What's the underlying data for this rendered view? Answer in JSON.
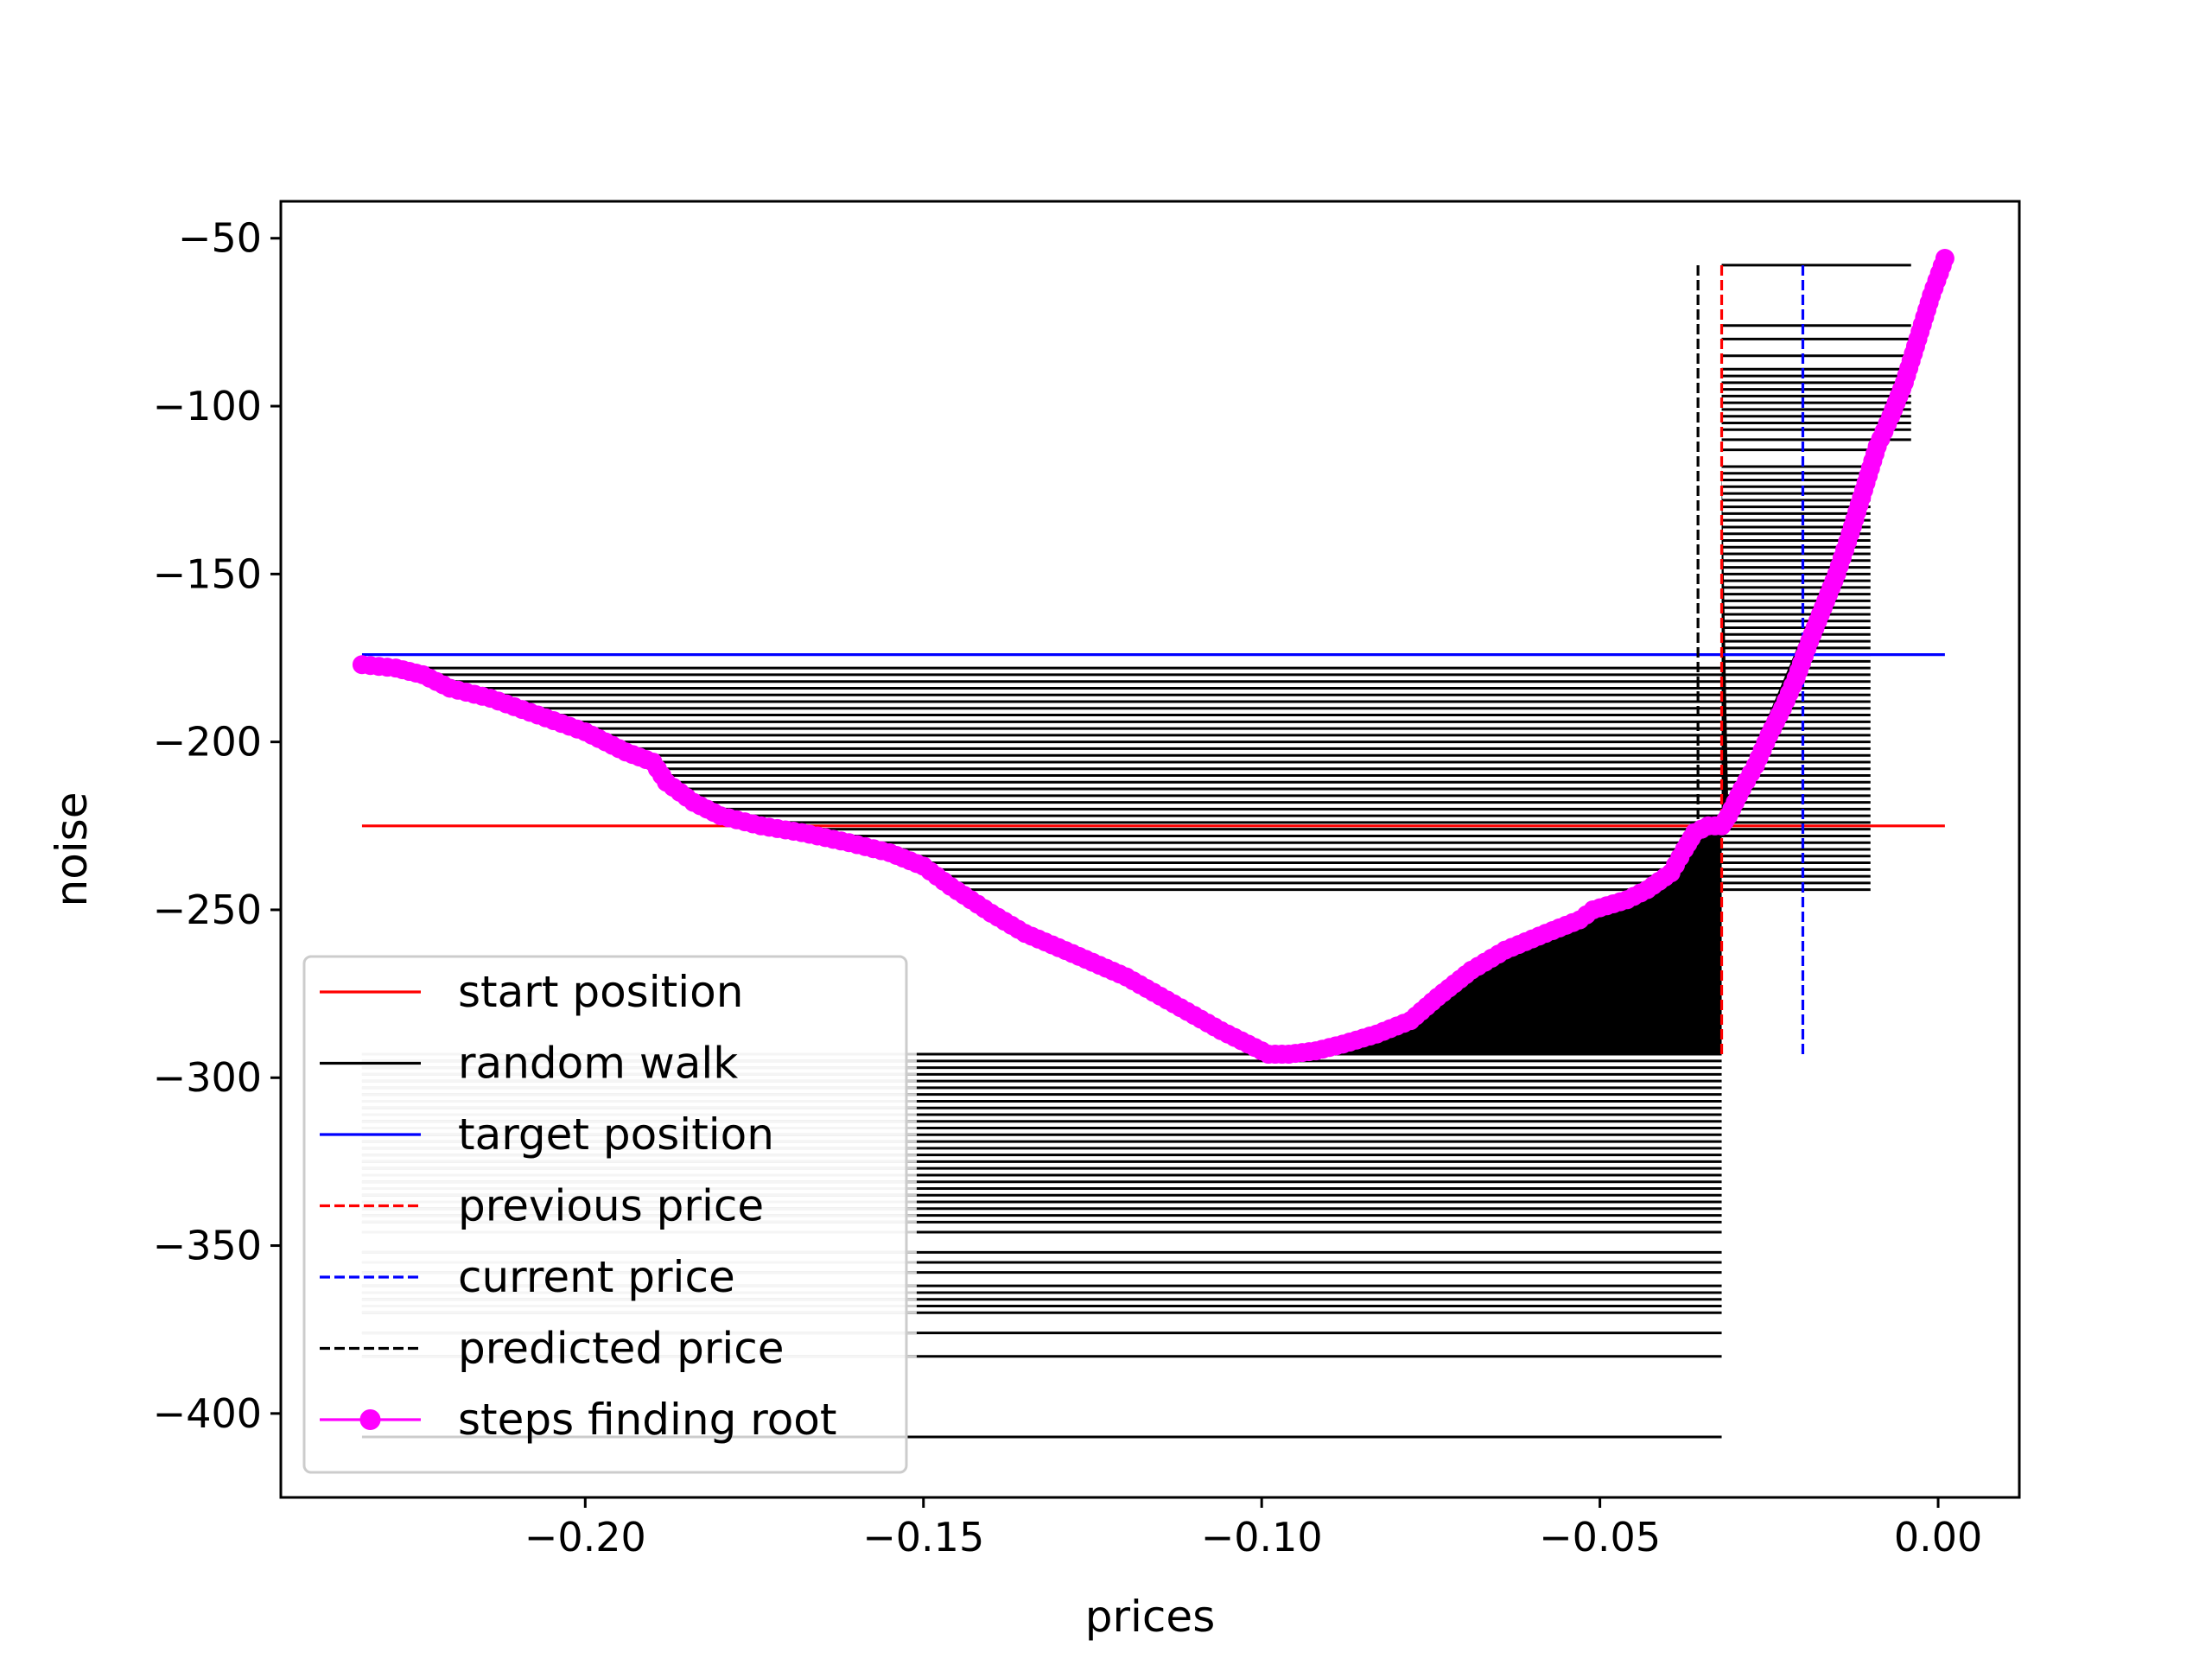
{
  "chart_data": {
    "type": "line",
    "title": "",
    "xlabel": "prices",
    "ylabel": "noise",
    "xlim": [
      -0.245,
      0.012
    ],
    "ylim": [
      -425,
      -39
    ],
    "grid": false,
    "legend_position": "lower-left",
    "x_ticks": [
      {
        "value": -0.2,
        "label": "−0.20"
      },
      {
        "value": -0.15,
        "label": "−0.15"
      },
      {
        "value": -0.1,
        "label": "−0.10"
      },
      {
        "value": -0.05,
        "label": "−0.05"
      },
      {
        "value": 0.0,
        "label": "0.00"
      }
    ],
    "y_ticks": [
      {
        "value": -50,
        "label": "−50"
      },
      {
        "value": -100,
        "label": "−100"
      },
      {
        "value": -150,
        "label": "−150"
      },
      {
        "value": -200,
        "label": "−200"
      },
      {
        "value": -250,
        "label": "−250"
      },
      {
        "value": -300,
        "label": "−300"
      },
      {
        "value": -350,
        "label": "−350"
      },
      {
        "value": -400,
        "label": "−400"
      }
    ],
    "series": [
      {
        "name": "start position",
        "kind": "hline",
        "y": -225,
        "x_range": [
          -0.233,
          0.001
        ],
        "color": "#ff0000",
        "dash": false
      },
      {
        "name": "random walk",
        "kind": "hlines",
        "color": "#000000",
        "dash": false
      },
      {
        "name": "target position",
        "kind": "hline",
        "y": -174,
        "x_range": [
          -0.233,
          0.001
        ],
        "color": "#0000ff",
        "dash": false
      },
      {
        "name": "previous price",
        "kind": "vline",
        "x": -0.032,
        "y_range": [
          -293,
          -58
        ],
        "color": "#ff0000",
        "dash": true
      },
      {
        "name": "current price",
        "kind": "vline",
        "x": -0.02,
        "y_range": [
          -293,
          -58
        ],
        "color": "#0000ff",
        "dash": true
      },
      {
        "name": "predicted price",
        "kind": "vline",
        "x": -0.0355,
        "y_range": [
          -293,
          -58
        ],
        "color": "#000000",
        "dash": true
      },
      {
        "name": "steps finding root",
        "kind": "line-markers",
        "color": "#ff00ff",
        "dash": false,
        "x": [
          -0.233,
          -0.228,
          -0.224,
          -0.22,
          -0.214,
          -0.207,
          -0.2,
          -0.194,
          -0.19,
          -0.188,
          -0.184,
          -0.18,
          -0.174,
          -0.168,
          -0.161,
          -0.155,
          -0.15,
          -0.146,
          -0.14,
          -0.135,
          -0.128,
          -0.12,
          -0.113,
          -0.106,
          -0.102,
          -0.099,
          -0.096,
          -0.092,
          -0.088,
          -0.083,
          -0.078,
          -0.074,
          -0.069,
          -0.064,
          -0.058,
          -0.053,
          -0.051,
          -0.046,
          -0.043,
          -0.0395,
          -0.0375,
          -0.036,
          -0.034,
          -0.032,
          -0.031,
          -0.029,
          -0.027,
          -0.025,
          -0.023,
          -0.021,
          -0.019,
          -0.017,
          -0.015,
          -0.013,
          -0.011,
          -0.009,
          -0.007,
          -0.005,
          -0.003,
          -0.001,
          0.001
        ],
        "y": [
          -177,
          -178,
          -180,
          -184,
          -187,
          -192,
          -197,
          -203,
          -206,
          -212,
          -218,
          -222,
          -225,
          -227,
          -230,
          -233,
          -237,
          -243,
          -251,
          -257,
          -263,
          -270,
          -278,
          -286,
          -290,
          -293,
          -293,
          -292,
          -290,
          -287,
          -283,
          -276,
          -268,
          -262,
          -257,
          -253,
          -250,
          -247,
          -244,
          -239,
          -232,
          -227,
          -225,
          -225,
          -222,
          -214,
          -207,
          -198,
          -190,
          -181,
          -170,
          -160,
          -150,
          -138,
          -125,
          -112,
          -103,
          -93,
          -80,
          -67,
          -56
        ]
      }
    ],
    "walk_levels_upper": [
      -58,
      -76,
      -80,
      -85,
      -89,
      -91,
      -93,
      -95,
      -97,
      -99,
      -101,
      -103,
      -105,
      -107,
      -110,
      -113,
      -118,
      -120,
      -122,
      -124,
      -126,
      -128,
      -130,
      -132,
      -134,
      -136,
      -138,
      -140,
      -142,
      -144,
      -146,
      -148,
      -150,
      -152,
      -154,
      -156,
      -158,
      -160,
      -162,
      -164,
      -166,
      -168,
      -170,
      -172,
      -174,
      -176,
      -178,
      -180,
      -182,
      -184,
      -186,
      -188,
      -190,
      -192,
      -194,
      -196,
      -198,
      -200,
      -202,
      -204,
      -206,
      -208,
      -210,
      -212,
      -214,
      -216,
      -218,
      -220,
      -222,
      -224,
      -226,
      -228,
      -230,
      -232,
      -234,
      -236,
      -238,
      -240,
      -242,
      -244
    ],
    "walk_levels_lower": [
      -293,
      -295,
      -297,
      -299,
      -301,
      -303,
      -305,
      -307,
      -309,
      -311,
      -313,
      -315,
      -317,
      -319,
      -321,
      -323,
      -325,
      -327,
      -329,
      -331,
      -333,
      -335,
      -337,
      -339,
      -341,
      -343,
      -346,
      -352,
      -355,
      -358,
      -362,
      -364,
      -366,
      -368,
      -370,
      -376,
      -383,
      -407
    ],
    "legend": [
      {
        "label": "start position",
        "color": "#ff0000",
        "style": "solid"
      },
      {
        "label": "random walk",
        "color": "#000000",
        "style": "solid"
      },
      {
        "label": "target position",
        "color": "#0000ff",
        "style": "solid"
      },
      {
        "label": "previous price",
        "color": "#ff0000",
        "style": "dashed"
      },
      {
        "label": "current price",
        "color": "#0000ff",
        "style": "dashed"
      },
      {
        "label": "predicted price",
        "color": "#000000",
        "style": "dashed"
      },
      {
        "label": "steps finding root",
        "color": "#ff00ff",
        "style": "marker"
      }
    ]
  }
}
